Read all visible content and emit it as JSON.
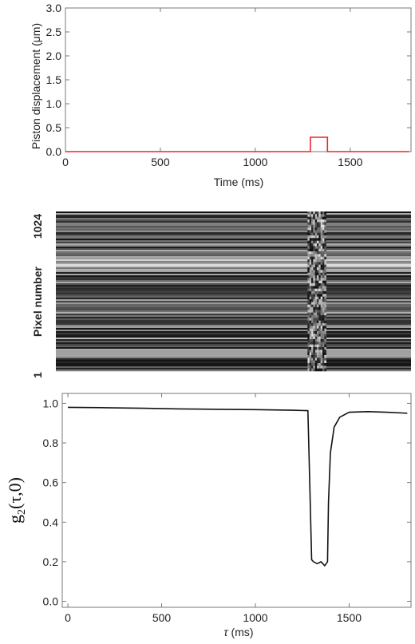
{
  "chart_data": [
    {
      "type": "line",
      "xlabel": "Time (ms)",
      "ylabel": "Piston displacement (μm)",
      "xlim": [
        0,
        1820
      ],
      "ylim": [
        0,
        3.0
      ],
      "xticks": [
        "0",
        "500",
        "1000",
        "1500"
      ],
      "yticks": [
        "0.0",
        "0.5",
        "1.0",
        "1.5",
        "2.0",
        "2.5",
        "3.0"
      ],
      "color": "#e8262b",
      "series": [
        {
          "x": [
            0,
            1290,
            1290,
            1380,
            1380,
            1810
          ],
          "y": [
            0,
            0,
            0.3,
            0.3,
            0,
            0
          ]
        }
      ]
    },
    {
      "type": "heatmap",
      "ylabel": "Pixel number",
      "ytick_top": "1024",
      "ytick_bottom": "1",
      "colormap": "grayscale",
      "disturbance_x_range_ms": [
        1290,
        1385
      ]
    },
    {
      "type": "line",
      "xlabel_symbol": "τ",
      "xlabel_unit": " (ms)",
      "ylabel_main": "g",
      "ylabel_sub": "2",
      "ylabel_args": "(τ,0)",
      "xlim": [
        -30,
        1830
      ],
      "ylim": [
        -0.03,
        1.05
      ],
      "xticks": [
        "0",
        "500",
        "1000",
        "1500"
      ],
      "yticks": [
        "0.0",
        "0.2",
        "0.4",
        "0.6",
        "0.8",
        "1.0"
      ],
      "color": "#111111",
      "series": [
        {
          "x": [
            0,
            200,
            400,
            600,
            800,
            1000,
            1200,
            1280,
            1290,
            1300,
            1310,
            1330,
            1350,
            1370,
            1385,
            1390,
            1400,
            1420,
            1450,
            1500,
            1600,
            1700,
            1810
          ],
          "y": [
            0.98,
            0.978,
            0.975,
            0.972,
            0.97,
            0.968,
            0.965,
            0.963,
            0.6,
            0.21,
            0.2,
            0.19,
            0.2,
            0.18,
            0.2,
            0.5,
            0.75,
            0.88,
            0.93,
            0.955,
            0.958,
            0.955,
            0.95
          ]
        }
      ]
    }
  ]
}
